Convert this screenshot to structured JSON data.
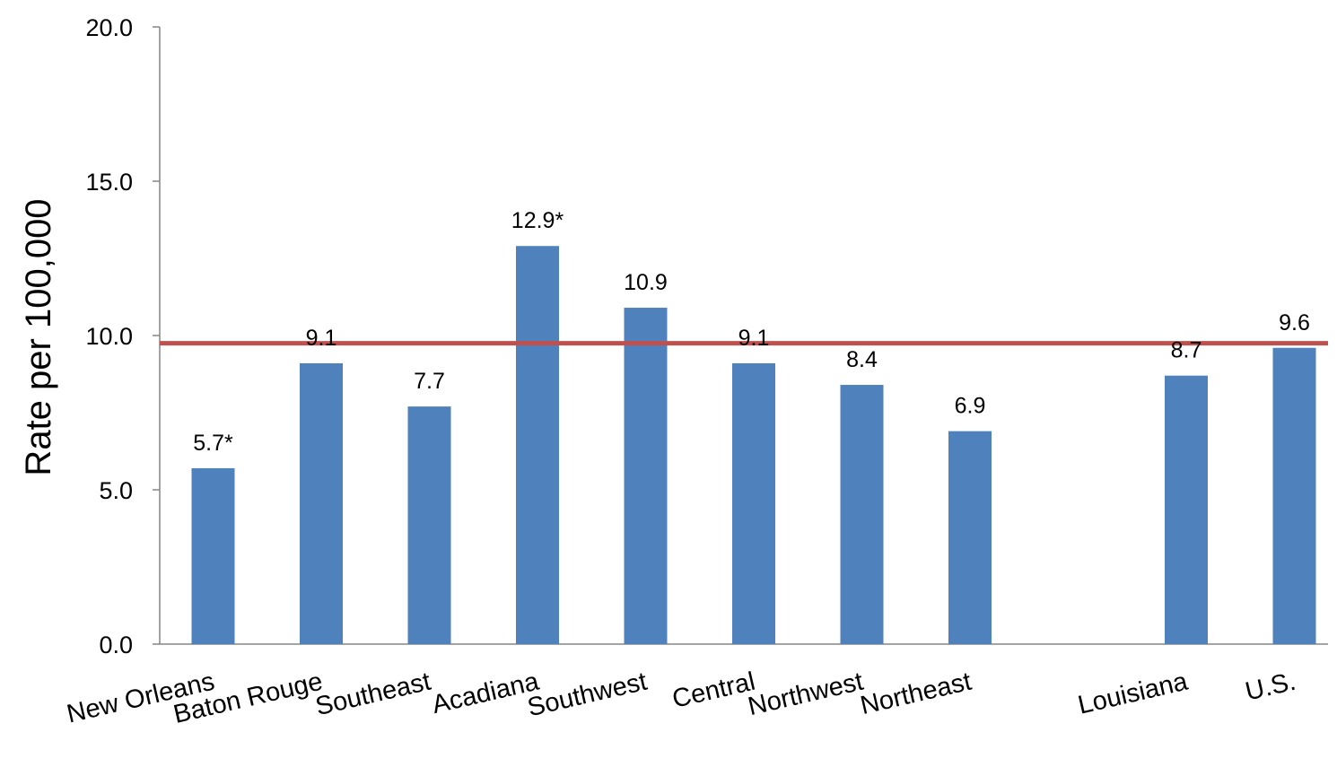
{
  "chart_data": {
    "type": "bar",
    "title": "",
    "xlabel": "",
    "ylabel": "Rate per 100,000",
    "ylim": [
      0,
      20
    ],
    "yticks": [
      "0.0",
      "5.0",
      "10.0",
      "15.0",
      "20.0"
    ],
    "grid": false,
    "categories": [
      "New Orleans",
      "Baton Rouge",
      "Southeast",
      "Acadiana",
      "Southwest",
      "Central",
      "Northwest",
      "Northeast",
      "",
      "Louisiana",
      "U.S."
    ],
    "values": [
      5.7,
      9.1,
      7.7,
      12.9,
      10.9,
      9.1,
      8.4,
      6.9,
      null,
      8.7,
      9.6
    ],
    "data_labels": [
      "5.7*",
      "9.1",
      "7.7",
      "12.9*",
      "10.9",
      "9.1",
      "8.4",
      "6.9",
      "",
      "8.7",
      "9.6"
    ],
    "reference_line": {
      "value": 9.75,
      "color": "#c0504d"
    },
    "bar_color": "#4f81bd",
    "axis_color": "#868686"
  }
}
